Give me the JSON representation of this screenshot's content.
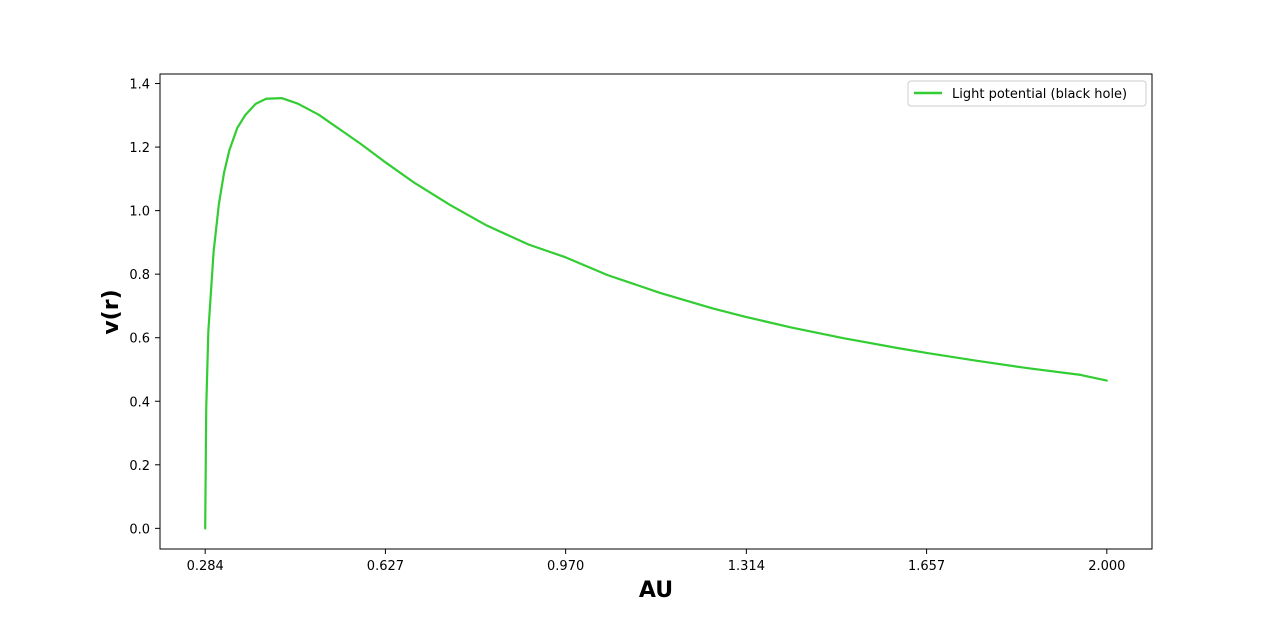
{
  "chart_data": {
    "type": "line",
    "title": "",
    "xlabel": "AU",
    "ylabel": "v(r)",
    "xlim": [
      0.198,
      2.086
    ],
    "ylim": [
      -0.065,
      1.43
    ],
    "xticks": [
      0.284,
      0.627,
      0.97,
      1.314,
      1.657,
      2.0
    ],
    "xtick_labels": [
      "0.284",
      "0.627",
      "0.970",
      "1.314",
      "1.657",
      "2.000"
    ],
    "yticks": [
      0.0,
      0.2,
      0.4,
      0.6,
      0.8,
      1.0,
      1.2,
      1.4
    ],
    "ytick_labels": [
      "0.0",
      "0.2",
      "0.4",
      "0.6",
      "0.8",
      "1.0",
      "1.2",
      "1.4"
    ],
    "grid": false,
    "legend_position": "top-right",
    "series": [
      {
        "name": "Light potential (black hole)",
        "color": "#32cd32",
        "x": [
          0.284,
          0.286,
          0.29,
          0.3,
          0.31,
          0.32,
          0.33,
          0.345,
          0.36,
          0.38,
          0.4,
          0.43,
          0.46,
          0.5,
          0.54,
          0.58,
          0.627,
          0.68,
          0.75,
          0.82,
          0.9,
          0.97,
          1.05,
          1.15,
          1.25,
          1.314,
          1.4,
          1.5,
          1.6,
          1.657,
          1.75,
          1.85,
          1.95,
          2.0
        ],
        "y": [
          0.0,
          0.38,
          0.62,
          0.87,
          1.02,
          1.12,
          1.19,
          1.26,
          1.3,
          1.336,
          1.352,
          1.354,
          1.337,
          1.302,
          1.256,
          1.21,
          1.152,
          1.09,
          1.018,
          0.953,
          0.893,
          0.853,
          0.797,
          0.741,
          0.692,
          0.665,
          0.632,
          0.598,
          0.568,
          0.552,
          0.528,
          0.504,
          0.483,
          0.465
        ]
      }
    ]
  }
}
